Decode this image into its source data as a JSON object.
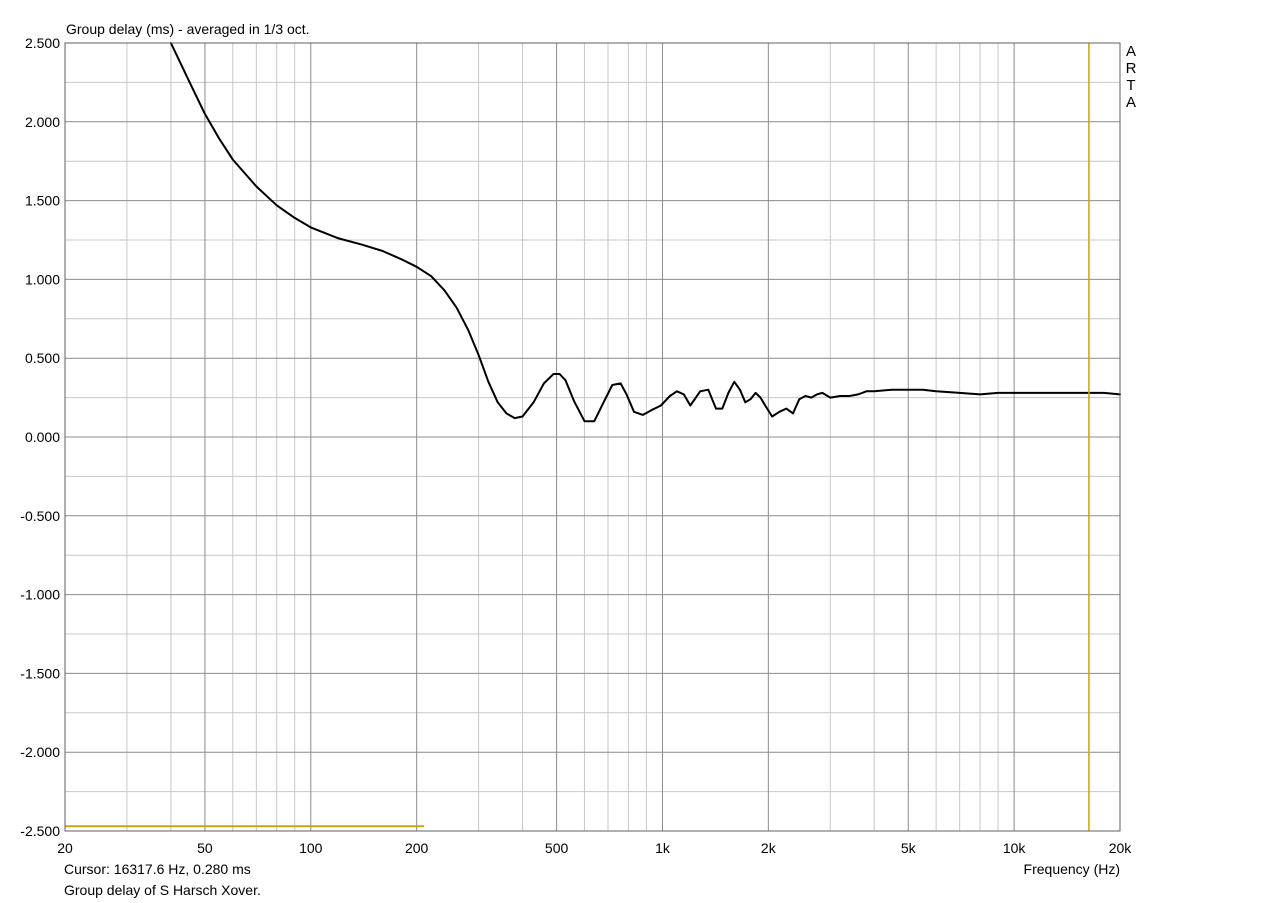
{
  "title": "Group delay (ms) - averaged in 1/3 oct.",
  "brand": [
    "A",
    "R",
    "T",
    "A"
  ],
  "cursor_readout": "Cursor: 16317.6 Hz, 0.280 ms",
  "caption": "Group delay of S Harsch Xover.",
  "colors": {
    "curve": "#000000",
    "cursor": "#c8a800",
    "grid": "#a0a0a0",
    "frame": "#606060"
  },
  "chart_data": {
    "type": "line",
    "title": "Group delay (ms) - averaged in 1/3 oct.",
    "xlabel": "Frequency (Hz)",
    "ylabel": "",
    "xscale": "log",
    "xlim": [
      20,
      20000
    ],
    "ylim": [
      -2.5,
      2.5
    ],
    "grid": true,
    "xticks": [
      20,
      50,
      100,
      200,
      500,
      1000,
      2000,
      5000,
      10000,
      20000
    ],
    "xtick_labels": [
      "20",
      "50",
      "100",
      "200",
      "500",
      "1k",
      "2k",
      "5k",
      "10k",
      "20k"
    ],
    "yticks": [
      2.5,
      2.0,
      1.5,
      1.0,
      0.5,
      0.0,
      -0.5,
      -1.0,
      -1.5,
      -2.0,
      -2.5
    ],
    "ytick_labels": [
      "2.500",
      "2.000",
      "1.500",
      "1.000",
      "0.500",
      "0.000",
      "-0.500",
      "-1.000",
      "-1.500",
      "-2.000",
      "-2.500"
    ],
    "cursor": {
      "frequency": 16317.6,
      "value": 0.28
    },
    "reference_line": {
      "x": [
        20,
        210
      ],
      "y": -2.47
    },
    "series": [
      {
        "x": [
          40,
          45,
          50,
          55,
          60,
          70,
          80,
          90,
          100,
          120,
          140,
          160,
          180,
          200,
          220,
          240,
          260,
          280,
          300,
          320,
          340,
          360,
          380,
          400,
          430,
          460,
          490,
          510,
          530,
          560,
          600,
          640,
          680,
          720,
          760,
          790,
          830,
          880,
          930,
          990,
          1050,
          1100,
          1150,
          1200,
          1280,
          1350,
          1420,
          1480,
          1540,
          1600,
          1660,
          1720,
          1780,
          1840,
          1900,
          1960,
          2050,
          2150,
          2250,
          2350,
          2450,
          2550,
          2650,
          2750,
          2850,
          3000,
          3200,
          3400,
          3600,
          3800,
          4000,
          4500,
          5000,
          5500,
          6000,
          7000,
          8000,
          9000,
          10000,
          12000,
          14000,
          16000,
          18000,
          20000
        ],
        "y": [
          2.5,
          2.26,
          2.05,
          1.89,
          1.76,
          1.59,
          1.47,
          1.39,
          1.33,
          1.26,
          1.22,
          1.18,
          1.13,
          1.08,
          1.02,
          0.93,
          0.82,
          0.68,
          0.52,
          0.35,
          0.22,
          0.15,
          0.12,
          0.13,
          0.22,
          0.34,
          0.4,
          0.4,
          0.36,
          0.23,
          0.1,
          0.1,
          0.22,
          0.33,
          0.34,
          0.27,
          0.16,
          0.14,
          0.17,
          0.2,
          0.26,
          0.29,
          0.27,
          0.2,
          0.29,
          0.3,
          0.18,
          0.18,
          0.28,
          0.35,
          0.3,
          0.22,
          0.24,
          0.28,
          0.25,
          0.2,
          0.13,
          0.16,
          0.18,
          0.15,
          0.24,
          0.26,
          0.25,
          0.27,
          0.28,
          0.25,
          0.26,
          0.26,
          0.27,
          0.29,
          0.29,
          0.3,
          0.3,
          0.3,
          0.29,
          0.28,
          0.27,
          0.28,
          0.28,
          0.28,
          0.28,
          0.28,
          0.28,
          0.27
        ]
      }
    ]
  }
}
